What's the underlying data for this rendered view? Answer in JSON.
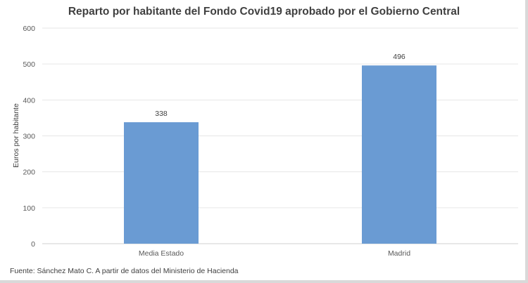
{
  "chart_data": {
    "type": "bar",
    "title": "Reparto por habitante del Fondo Covid19 aprobado por el Gobierno Central",
    "ylabel": "Euros por habitante",
    "xlabel": "",
    "categories": [
      "Media Estado",
      "Madrid"
    ],
    "values": [
      338,
      496
    ],
    "data_labels": [
      "338",
      "496"
    ],
    "ylim": [
      0,
      600
    ],
    "yticks": [
      "0",
      "100",
      "200",
      "300",
      "400",
      "500",
      "600"
    ],
    "grid": true,
    "legend": "none",
    "bar_color": "#6a9bd3",
    "grid_color": "#e6e6e6"
  },
  "source": "Fuente: Sánchez Mato C.  A partir de datos del Ministerio de Hacienda"
}
